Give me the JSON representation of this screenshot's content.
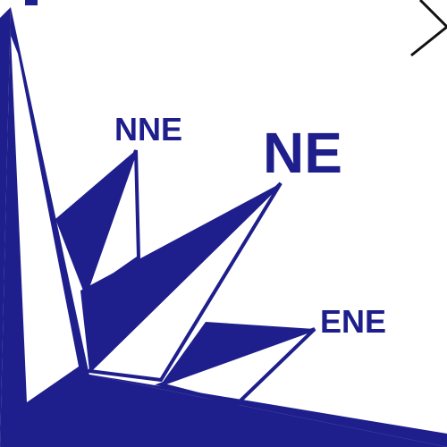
{
  "compass": {
    "color": "#1e1e8c",
    "background": "#ffffff",
    "labels": {
      "nne": "NNE",
      "ne": "NE",
      "ene": "ENE"
    }
  }
}
